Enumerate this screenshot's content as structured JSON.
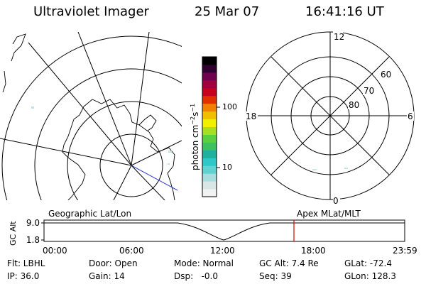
{
  "header": {
    "title": "Ultraviolet Imager",
    "date": "25 Mar 07",
    "time": "16:41:16 UT"
  },
  "colorbar": {
    "unit_label": "photon cm",
    "unit_exp1": "−2",
    "unit_mid": "s",
    "unit_exp2": "−1",
    "ticks": [
      "100",
      "10"
    ],
    "colors": [
      "#f2f2f2",
      "#d8e6e6",
      "#a8dde0",
      "#5fd3d0",
      "#2ec8c8",
      "#20b0a0",
      "#3cc060",
      "#5ad040",
      "#a8e020",
      "#f0f000",
      "#f0c000",
      "#f08000",
      "#e03000",
      "#c80020",
      "#a00040",
      "#700050",
      "#300030",
      "#000000"
    ]
  },
  "geo_map": {
    "label": "Geographic Lat/Lon"
  },
  "polar_map": {
    "label": "Apex MLat/MLT",
    "mlt_labels": {
      "top": "12",
      "left": "18",
      "right": "6",
      "bottom": "0"
    },
    "lat_labels": [
      "60",
      "70",
      "80"
    ]
  },
  "altitude_plot": {
    "ylabel": "GC Alt",
    "ytick_top": "9.0",
    "ytick_bottom": "1.8",
    "xticks": [
      "00:00",
      "06:00",
      "12:00",
      "18:00",
      "23:59"
    ],
    "marker_color": "#e00000"
  },
  "status": {
    "flt": "Flt: LBHL",
    "ip": "IP: 36.0",
    "door": "Door: Open",
    "gain": "Gain: 14",
    "mode": "Mode: Normal",
    "dsp": "Dsp:   ‑0.0",
    "gc_alt": "GC Alt: 7.4 Re",
    "seq": "Seq: 39",
    "glat": "GLat: ‑72.4",
    "glon": "GLon: 128.3"
  }
}
